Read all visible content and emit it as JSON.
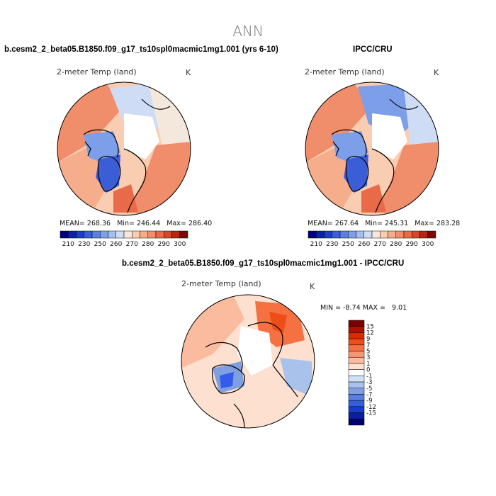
{
  "main_title": "ANN",
  "chart_data": [
    {
      "type": "heatmap",
      "projection": "north-polar-stereographic",
      "title": "b.cesm2_2_beta05.B1850.f09_g17_ts10spl0macmic1mg1.001 (yrs 6-10)",
      "variable_label": "2-meter Temp (land)",
      "units": "K",
      "stats": {
        "mean_label": "MEAN=",
        "mean": "268.36",
        "min_label": "Min=",
        "min": "246.44",
        "max_label": "Max=",
        "max": "286.40"
      },
      "colorbar": {
        "levels": [
          210,
          220,
          230,
          240,
          250,
          255,
          260,
          265,
          270,
          275,
          280,
          285,
          290,
          295,
          300
        ],
        "tick_labels": [
          "210",
          "230",
          "250",
          "260",
          "270",
          "280",
          "290",
          "300"
        ],
        "colors": [
          "#00007f",
          "#0a23a8",
          "#1f3fc4",
          "#3b5ed6",
          "#5a7fe0",
          "#7d9ee8",
          "#a6bdee",
          "#cfdcf5",
          "#f4e8dd",
          "#f9cdb2",
          "#f5ad8c",
          "#f08d6a",
          "#e86a48",
          "#d4472b",
          "#b62515",
          "#7a0a05"
        ]
      }
    },
    {
      "type": "heatmap",
      "projection": "north-polar-stereographic",
      "title": "IPCC/CRU",
      "variable_label": "2-meter Temp (land)",
      "units": "K",
      "stats": {
        "mean_label": "MEAN=",
        "mean": "267.64",
        "min_label": "Min=",
        "min": "245.31",
        "max_label": "Max=",
        "max": "283.28"
      },
      "colorbar": {
        "levels": [
          210,
          220,
          230,
          240,
          250,
          255,
          260,
          265,
          270,
          275,
          280,
          285,
          290,
          295,
          300
        ],
        "tick_labels": [
          "210",
          "230",
          "250",
          "260",
          "270",
          "280",
          "290",
          "300"
        ],
        "colors": [
          "#00007f",
          "#0a23a8",
          "#1f3fc4",
          "#3b5ed6",
          "#5a7fe0",
          "#7d9ee8",
          "#a6bdee",
          "#cfdcf5",
          "#f4e8dd",
          "#f9cdb2",
          "#f5ad8c",
          "#f08d6a",
          "#e86a48",
          "#d4472b",
          "#b62515",
          "#7a0a05"
        ]
      }
    },
    {
      "type": "heatmap",
      "projection": "north-polar-stereographic",
      "title": "b.cesm2_2_beta05.B1850.f09_g17_ts10spl0macmic1mg1.001 - IPCC/CRU",
      "variable_label": "2-meter Temp (land)",
      "units": "K",
      "stats": {
        "min_label": "MIN =",
        "min": "-8.74",
        "max_label": "MAX =",
        "max": "9.01"
      },
      "colorbar": {
        "orientation": "vertical",
        "tick_labels": [
          "15",
          "12",
          "9",
          "7",
          "5",
          "3",
          "1",
          "0",
          "-1",
          "-3",
          "-5",
          "-7",
          "-9",
          "-12",
          "-15"
        ],
        "colors": [
          "#7a0000",
          "#b30f00",
          "#d92a00",
          "#ef4d18",
          "#f57142",
          "#f99670",
          "#fbbb9e",
          "#fde0d0",
          "#ffffff",
          "#d2e0f5",
          "#a8c2ec",
          "#7f9fe0",
          "#5a7de0",
          "#345ce8",
          "#1a3ad0",
          "#0a1e9e",
          "#00006e"
        ]
      }
    }
  ]
}
